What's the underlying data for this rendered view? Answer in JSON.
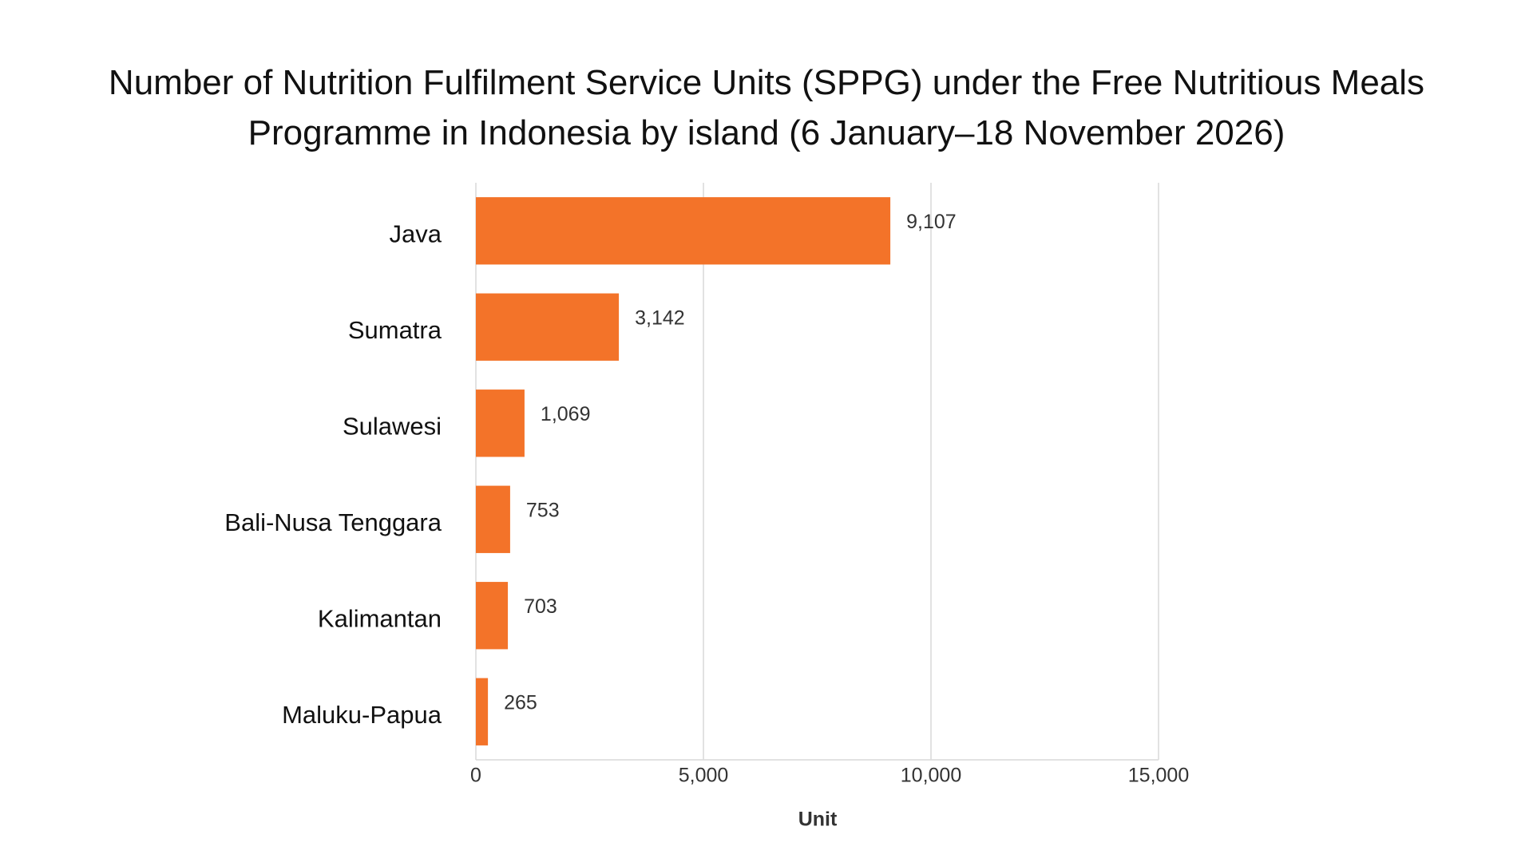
{
  "chart_data": {
    "type": "bar",
    "orientation": "horizontal",
    "title": "Number of Nutrition Fulfilment Service Units (SPPG) under the Free Nutritious Meals Programme in Indonesia by island (6 January–18 November 2026)",
    "categories": [
      "Java",
      "Sumatra",
      "Sulawesi",
      "Bali-Nusa Tenggara",
      "Kalimantan",
      "Maluku-Papua"
    ],
    "values": [
      9107,
      3142,
      1069,
      753,
      703,
      265
    ],
    "value_labels": [
      "9,107",
      "3,142",
      "1,069",
      "753",
      "703",
      "265"
    ],
    "color": "#f37329",
    "xlabel": "Unit",
    "xlim": [
      0,
      15000
    ],
    "xticks": [
      0,
      {
        "value": 5000,
        "label": "5,000"
      },
      {
        "value": 10000,
        "label": "10,000"
      },
      {
        "value": 15000,
        "label": "15,000"
      }
    ],
    "grid": true
  }
}
